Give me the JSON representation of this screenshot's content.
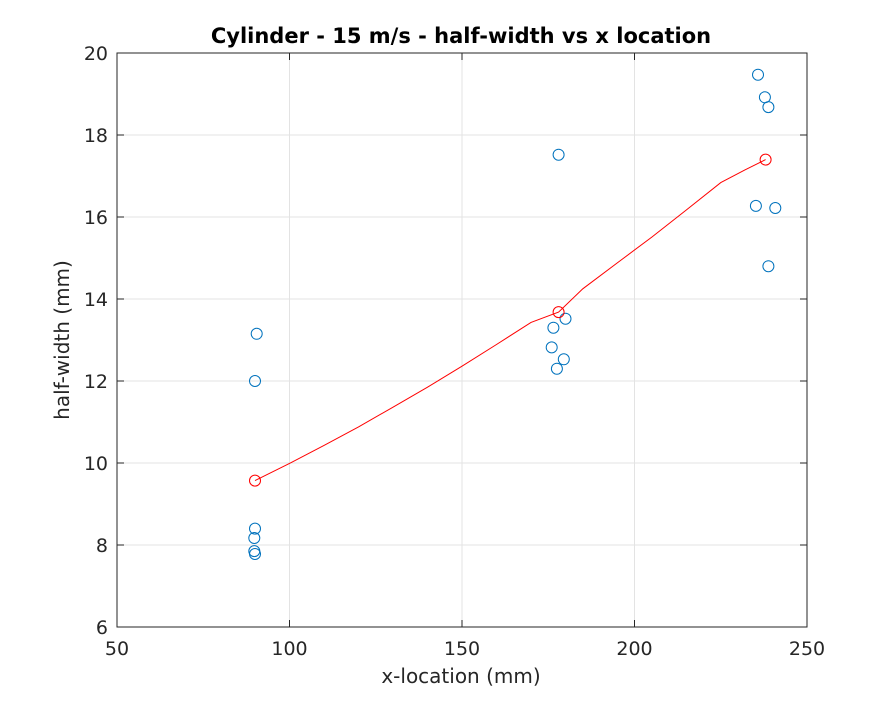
{
  "chart_data": {
    "type": "scatter",
    "title": "Cylinder - 15 m/s - half-width vs x location",
    "xlabel": "x-location (mm)",
    "ylabel": "half-width (mm)",
    "xlim": [
      50,
      250
    ],
    "ylim": [
      6,
      20
    ],
    "xticks": [
      50,
      100,
      150,
      200,
      250
    ],
    "yticks": [
      6,
      8,
      10,
      12,
      14,
      16,
      18,
      20
    ],
    "xtick_labels": [
      "50",
      "100",
      "150",
      "200",
      "250"
    ],
    "ytick_labels": [
      "6",
      "8",
      "10",
      "12",
      "14",
      "16",
      "18",
      "20"
    ],
    "grid": true,
    "series": [
      {
        "color": "#0072BD",
        "marker": "circle-open",
        "points": [
          {
            "x": 90.5,
            "y": 13.15
          },
          {
            "x": 90.0,
            "y": 12.0
          },
          {
            "x": 90.0,
            "y": 8.4
          },
          {
            "x": 89.8,
            "y": 8.17
          },
          {
            "x": 89.8,
            "y": 7.85
          },
          {
            "x": 90.0,
            "y": 7.78
          },
          {
            "x": 178.0,
            "y": 17.52
          },
          {
            "x": 180.0,
            "y": 13.52
          },
          {
            "x": 176.5,
            "y": 13.3
          },
          {
            "x": 176.0,
            "y": 12.82
          },
          {
            "x": 179.5,
            "y": 12.53
          },
          {
            "x": 177.5,
            "y": 12.3
          },
          {
            "x": 235.8,
            "y": 19.47
          },
          {
            "x": 237.8,
            "y": 18.92
          },
          {
            "x": 238.8,
            "y": 18.68
          },
          {
            "x": 235.2,
            "y": 16.27
          },
          {
            "x": 240.8,
            "y": 16.22
          },
          {
            "x": 238.8,
            "y": 14.8
          }
        ]
      },
      {
        "color": "#FF0000",
        "marker": "circle-open",
        "points": [
          {
            "x": 90.0,
            "y": 9.57
          },
          {
            "x": 178.0,
            "y": 13.68
          },
          {
            "x": 238.0,
            "y": 17.4
          }
        ]
      },
      {
        "color": "#FF0000",
        "marker": "line",
        "x": [
          90,
          100,
          110,
          120,
          130,
          140,
          150,
          160,
          170,
          178,
          185,
          195,
          205,
          215,
          225,
          232,
          238
        ],
        "y": [
          9.57,
          9.99,
          10.43,
          10.88,
          11.36,
          11.85,
          12.36,
          12.89,
          13.43,
          13.68,
          14.25,
          14.88,
          15.51,
          16.17,
          16.84,
          17.15,
          17.4
        ]
      }
    ]
  }
}
